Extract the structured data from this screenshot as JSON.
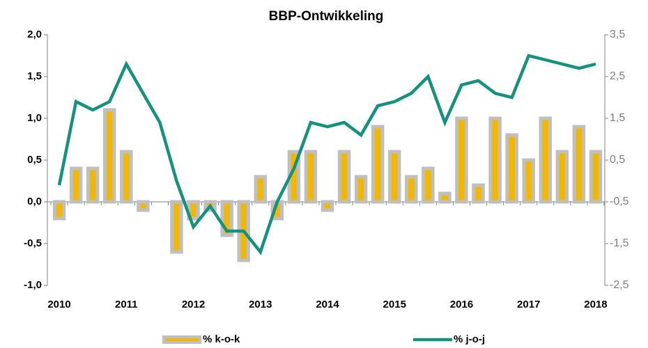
{
  "chart_data": {
    "type": "combo",
    "title": "BBP-Ontwikkeling",
    "categories": [
      "2010",
      null,
      null,
      null,
      "2011",
      null,
      null,
      null,
      "2012",
      null,
      null,
      null,
      "2013",
      null,
      null,
      null,
      "2014",
      null,
      null,
      null,
      "2015",
      null,
      null,
      null,
      "2016",
      null,
      null,
      null,
      "2017",
      null,
      null,
      null,
      "2018"
    ],
    "series": [
      {
        "name": "% k-o-k",
        "type": "bar",
        "color": "#f2b800",
        "border": "#bfbfbf",
        "values": [
          -0.2,
          0.4,
          0.4,
          1.1,
          0.6,
          -0.1,
          0,
          -0.6,
          -0.2,
          -0.1,
          -0.4,
          -0.7,
          0.3,
          -0.2,
          0.6,
          0.6,
          -0.1,
          0.6,
          0.3,
          0.9,
          0.6,
          0.3,
          0.4,
          0.1,
          1.0,
          0.2,
          1.0,
          0.8,
          0.5,
          1.0,
          0.6,
          0.9,
          0.6
        ]
      },
      {
        "name": "% j-o-j",
        "type": "line",
        "axis": "y2",
        "color": "#14917f",
        "values": [
          -0.1,
          1.9,
          1.7,
          1.9,
          2.8,
          2.1,
          1.4,
          0.0,
          -1.1,
          -0.6,
          -1.2,
          -1.2,
          -1.7,
          -0.5,
          0.3,
          1.4,
          1.3,
          1.4,
          1.1,
          1.8,
          1.9,
          2.1,
          2.5,
          1.4,
          2.3,
          2.4,
          2.1,
          2.0,
          3.0,
          2.9,
          2.8,
          2.7,
          2.8
        ]
      }
    ],
    "ylim": [
      -1,
      2
    ],
    "yticks": [
      {
        "value": -1,
        "label": "-1,0"
      },
      {
        "value": -0.5,
        "label": "-0,5"
      },
      {
        "value": 0,
        "label": "0,0"
      },
      {
        "value": 0.5,
        "label": "0,5"
      },
      {
        "value": 1,
        "label": "1,0"
      },
      {
        "value": 1.5,
        "label": "1,5"
      },
      {
        "value": 2,
        "label": "2,0"
      }
    ],
    "y2lim": [
      -2.5,
      3.5
    ],
    "y2ticks": [
      {
        "value": -2.5,
        "label": "-2,5"
      },
      {
        "value": -1.5,
        "label": "-1,5"
      },
      {
        "value": -0.5,
        "label": "-0,5"
      },
      {
        "value": 0.5,
        "label": "0,5"
      },
      {
        "value": 1.5,
        "label": "1,5"
      },
      {
        "value": 2.5,
        "label": "2,5"
      },
      {
        "value": 3.5,
        "label": "3,5"
      }
    ],
    "legend": "bottom"
  }
}
